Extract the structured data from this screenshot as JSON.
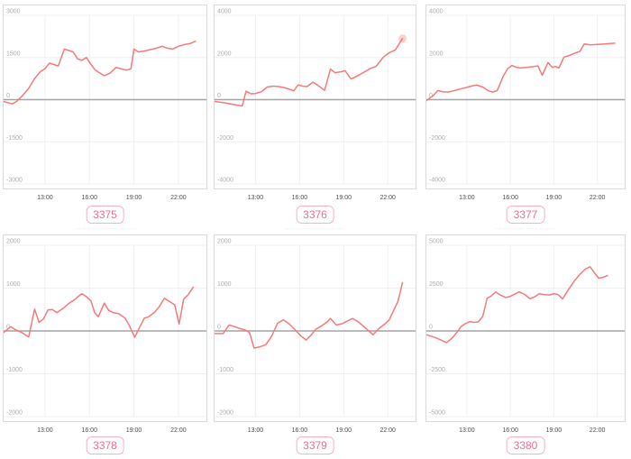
{
  "colors": {
    "line": "#f87979",
    "zero_line": "#a3a3a3",
    "grid": "#f0f0f0",
    "box_border": "#d8dae0",
    "y_label": "#adadad",
    "x_label": "#4d4d4d",
    "badge_text": "#f06d96",
    "badge_border": "#f8b2c2",
    "title_text": "#c4c4c4"
  },
  "chart_data": [
    {
      "type": "line",
      "badge": "3375",
      "title_fragment": "··· ···· ······ ······ ··· ····",
      "x_tick_labels": [
        "13:00",
        "16:00",
        "19:00",
        "22:00"
      ],
      "x_tick_hours": [
        13,
        16,
        19,
        22
      ],
      "x_domain_hours": [
        10.15,
        23.95
      ],
      "y_ticks": [
        3000,
        1500,
        0,
        -1500,
        -3000
      ],
      "ylim": [
        -3000,
        3000
      ],
      "end_marker": false,
      "points": [
        [
          10.15,
          -60
        ],
        [
          10.8,
          -150
        ],
        [
          11.1,
          -60
        ],
        [
          11.5,
          150
        ],
        [
          11.9,
          400
        ],
        [
          12.3,
          750
        ],
        [
          12.7,
          1000
        ],
        [
          13.0,
          1100
        ],
        [
          13.3,
          1300
        ],
        [
          13.6,
          1250
        ],
        [
          13.9,
          1200
        ],
        [
          14.3,
          1800
        ],
        [
          14.6,
          1750
        ],
        [
          14.9,
          1700
        ],
        [
          15.2,
          1450
        ],
        [
          15.5,
          1400
        ],
        [
          15.8,
          1500
        ],
        [
          16.1,
          1250
        ],
        [
          16.4,
          1050
        ],
        [
          16.7,
          950
        ],
        [
          17.0,
          850
        ],
        [
          17.4,
          950
        ],
        [
          17.8,
          1150
        ],
        [
          18.1,
          1100
        ],
        [
          18.5,
          1050
        ],
        [
          18.8,
          1100
        ],
        [
          19.0,
          1800
        ],
        [
          19.3,
          1700
        ],
        [
          19.7,
          1730
        ],
        [
          20.1,
          1780
        ],
        [
          20.5,
          1830
        ],
        [
          20.9,
          1900
        ],
        [
          21.2,
          1840
        ],
        [
          21.6,
          1800
        ],
        [
          22.0,
          1900
        ],
        [
          22.4,
          1960
        ],
        [
          22.8,
          2000
        ],
        [
          23.15,
          2080
        ]
      ]
    },
    {
      "type": "line",
      "badge": "3376",
      "title_fragment": "··· ···· ······ ······ ··· ····",
      "x_tick_labels": [
        "13:00",
        "16:00",
        "19:00",
        "22:00"
      ],
      "x_tick_hours": [
        13,
        16,
        19,
        22
      ],
      "x_domain_hours": [
        10.15,
        23.95
      ],
      "y_ticks": [
        4000,
        2000,
        0,
        -2000,
        -4000
      ],
      "ylim": [
        -4000,
        4000
      ],
      "end_marker": true,
      "points": [
        [
          10.15,
          -80
        ],
        [
          10.9,
          -150
        ],
        [
          11.4,
          -220
        ],
        [
          11.9,
          -280
        ],
        [
          12.1,
          -300
        ],
        [
          12.35,
          400
        ],
        [
          12.7,
          280
        ],
        [
          13.0,
          290
        ],
        [
          13.4,
          380
        ],
        [
          13.8,
          600
        ],
        [
          14.2,
          640
        ],
        [
          14.6,
          620
        ],
        [
          15.0,
          560
        ],
        [
          15.4,
          470
        ],
        [
          15.6,
          420
        ],
        [
          15.9,
          700
        ],
        [
          16.2,
          640
        ],
        [
          16.5,
          620
        ],
        [
          16.9,
          830
        ],
        [
          17.3,
          650
        ],
        [
          17.7,
          440
        ],
        [
          18.1,
          1450
        ],
        [
          18.4,
          1280
        ],
        [
          18.8,
          1320
        ],
        [
          19.1,
          1370
        ],
        [
          19.5,
          980
        ],
        [
          19.8,
          1080
        ],
        [
          20.3,
          1270
        ],
        [
          20.8,
          1470
        ],
        [
          21.2,
          1580
        ],
        [
          21.7,
          2020
        ],
        [
          22.1,
          2230
        ],
        [
          22.5,
          2350
        ],
        [
          23.0,
          2900
        ]
      ]
    },
    {
      "type": "line",
      "badge": "3377",
      "title_fragment": "··· ···· ······ ······ ··· ····",
      "x_tick_labels": [
        "13:00",
        "16:00",
        "19:00",
        "22:00"
      ],
      "x_tick_hours": [
        13,
        16,
        19,
        22
      ],
      "x_domain_hours": [
        10.15,
        23.95
      ],
      "y_ticks": [
        4000,
        2000,
        0,
        -2000,
        -4000
      ],
      "ylim": [
        -4000,
        4000
      ],
      "end_marker": false,
      "points": [
        [
          10.15,
          -80
        ],
        [
          10.7,
          200
        ],
        [
          11.0,
          430
        ],
        [
          11.3,
          380
        ],
        [
          11.7,
          360
        ],
        [
          12.1,
          420
        ],
        [
          12.5,
          500
        ],
        [
          12.9,
          560
        ],
        [
          13.3,
          640
        ],
        [
          13.7,
          690
        ],
        [
          14.1,
          600
        ],
        [
          14.5,
          420
        ],
        [
          14.8,
          360
        ],
        [
          15.1,
          430
        ],
        [
          15.5,
          1100
        ],
        [
          15.8,
          1450
        ],
        [
          16.1,
          1620
        ],
        [
          16.4,
          1540
        ],
        [
          16.7,
          1500
        ],
        [
          17.1,
          1530
        ],
        [
          17.5,
          1560
        ],
        [
          17.9,
          1600
        ],
        [
          18.2,
          1160
        ],
        [
          18.6,
          1760
        ],
        [
          18.9,
          1530
        ],
        [
          19.1,
          1580
        ],
        [
          19.35,
          1500
        ],
        [
          19.7,
          2020
        ],
        [
          20.0,
          2080
        ],
        [
          20.4,
          2190
        ],
        [
          20.8,
          2290
        ],
        [
          21.1,
          2650
        ],
        [
          21.5,
          2600
        ],
        [
          22.0,
          2620
        ],
        [
          22.6,
          2650
        ],
        [
          23.2,
          2680
        ]
      ]
    },
    {
      "type": "line",
      "badge": "3378",
      "title_fragment": "··· ···· ······ ······ ··· ····",
      "x_tick_labels": [
        "13:00",
        "16:00",
        "19:00",
        "22:00"
      ],
      "x_tick_hours": [
        13,
        16,
        19,
        22
      ],
      "x_domain_hours": [
        10.15,
        23.95
      ],
      "y_ticks": [
        2000,
        1000,
        0,
        -1000,
        -2000
      ],
      "ylim": [
        -2000,
        2000
      ],
      "end_marker": false,
      "points": [
        [
          10.15,
          -50
        ],
        [
          10.7,
          100
        ],
        [
          11.0,
          30
        ],
        [
          11.4,
          -30
        ],
        [
          11.9,
          -140
        ],
        [
          12.3,
          510
        ],
        [
          12.6,
          200
        ],
        [
          12.9,
          280
        ],
        [
          13.2,
          490
        ],
        [
          13.5,
          500
        ],
        [
          13.8,
          430
        ],
        [
          14.2,
          520
        ],
        [
          14.6,
          640
        ],
        [
          15.0,
          730
        ],
        [
          15.3,
          820
        ],
        [
          15.5,
          870
        ],
        [
          15.8,
          800
        ],
        [
          16.1,
          700
        ],
        [
          16.35,
          430
        ],
        [
          16.6,
          330
        ],
        [
          17.0,
          650
        ],
        [
          17.3,
          480
        ],
        [
          17.6,
          430
        ],
        [
          18.0,
          400
        ],
        [
          18.4,
          300
        ],
        [
          18.7,
          120
        ],
        [
          19.05,
          -150
        ],
        [
          19.4,
          100
        ],
        [
          19.7,
          300
        ],
        [
          20.0,
          330
        ],
        [
          20.4,
          440
        ],
        [
          20.7,
          560
        ],
        [
          21.05,
          760
        ],
        [
          21.35,
          700
        ],
        [
          21.75,
          610
        ],
        [
          22.05,
          160
        ],
        [
          22.35,
          740
        ],
        [
          22.65,
          840
        ],
        [
          23.0,
          1020
        ]
      ]
    },
    {
      "type": "line",
      "badge": "3379",
      "title_fragment": "··· ···· ······ ······ ··· ····",
      "x_tick_labels": [
        "13:00",
        "16:00",
        "19:00",
        "22:00"
      ],
      "x_tick_hours": [
        13,
        16,
        19,
        22
      ],
      "x_domain_hours": [
        10.15,
        23.95
      ],
      "y_ticks": [
        2000,
        1000,
        0,
        -1000,
        -2000
      ],
      "ylim": [
        -2000,
        2000
      ],
      "end_marker": false,
      "points": [
        [
          10.15,
          -60
        ],
        [
          10.8,
          -60
        ],
        [
          11.2,
          140
        ],
        [
          11.5,
          110
        ],
        [
          11.9,
          60
        ],
        [
          12.3,
          20
        ],
        [
          12.6,
          -40
        ],
        [
          12.9,
          -400
        ],
        [
          13.3,
          -370
        ],
        [
          13.7,
          -320
        ],
        [
          14.1,
          -120
        ],
        [
          14.5,
          180
        ],
        [
          14.9,
          260
        ],
        [
          15.3,
          160
        ],
        [
          15.7,
          20
        ],
        [
          16.1,
          -120
        ],
        [
          16.45,
          -210
        ],
        [
          16.8,
          -90
        ],
        [
          17.1,
          40
        ],
        [
          17.5,
          120
        ],
        [
          17.9,
          220
        ],
        [
          18.1,
          290
        ],
        [
          18.5,
          140
        ],
        [
          18.9,
          170
        ],
        [
          19.3,
          240
        ],
        [
          19.6,
          290
        ],
        [
          20.0,
          210
        ],
        [
          20.5,
          60
        ],
        [
          21.0,
          -90
        ],
        [
          21.4,
          60
        ],
        [
          21.8,
          160
        ],
        [
          22.1,
          260
        ],
        [
          22.4,
          480
        ],
        [
          22.7,
          700
        ],
        [
          23.0,
          1130
        ]
      ]
    },
    {
      "type": "line",
      "badge": "3380",
      "title_fragment": "··· ···· ······ ······ ··· ····",
      "x_tick_labels": [
        "13:00",
        "16:00",
        "19:00",
        "22:00"
      ],
      "x_tick_hours": [
        13,
        16,
        19,
        22
      ],
      "x_domain_hours": [
        10.15,
        23.95
      ],
      "y_ticks": [
        5000,
        2500,
        0,
        -2500,
        -5000
      ],
      "ylim": [
        -5000,
        5000
      ],
      "end_marker": false,
      "points": [
        [
          10.15,
          -200
        ],
        [
          10.8,
          -380
        ],
        [
          11.2,
          -520
        ],
        [
          11.6,
          -680
        ],
        [
          12.0,
          -400
        ],
        [
          12.3,
          -100
        ],
        [
          12.6,
          250
        ],
        [
          12.9,
          420
        ],
        [
          13.2,
          540
        ],
        [
          13.5,
          500
        ],
        [
          13.8,
          530
        ],
        [
          14.1,
          850
        ],
        [
          14.4,
          1900
        ],
        [
          14.7,
          2050
        ],
        [
          15.0,
          2280
        ],
        [
          15.3,
          2100
        ],
        [
          15.7,
          1950
        ],
        [
          16.0,
          2020
        ],
        [
          16.3,
          2150
        ],
        [
          16.6,
          2280
        ],
        [
          17.0,
          2130
        ],
        [
          17.35,
          1880
        ],
        [
          17.7,
          2000
        ],
        [
          18.0,
          2180
        ],
        [
          18.35,
          2120
        ],
        [
          18.7,
          2100
        ],
        [
          19.0,
          2180
        ],
        [
          19.3,
          2120
        ],
        [
          19.6,
          1870
        ],
        [
          20.0,
          2400
        ],
        [
          20.4,
          2900
        ],
        [
          20.8,
          3300
        ],
        [
          21.15,
          3600
        ],
        [
          21.5,
          3750
        ],
        [
          21.8,
          3400
        ],
        [
          22.1,
          3080
        ],
        [
          22.4,
          3130
        ],
        [
          22.7,
          3230
        ]
      ]
    }
  ]
}
